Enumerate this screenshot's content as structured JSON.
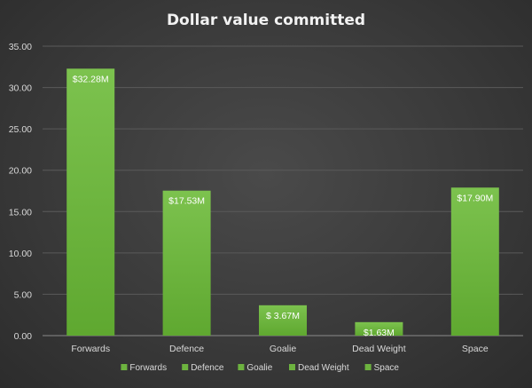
{
  "chart_data": {
    "type": "bar",
    "title": "Dollar value committed",
    "xlabel": "",
    "ylabel": "",
    "categories": [
      "Forwards",
      "Defence",
      "Goalie",
      "Dead Weight",
      "Space"
    ],
    "values": [
      32.28,
      17.53,
      3.67,
      1.63,
      17.9
    ],
    "data_labels": [
      "$32.28M",
      "$17.53M",
      "$ 3.67M",
      "$1.63M",
      "$17.90M"
    ],
    "ylim": [
      0,
      35
    ],
    "yticks": [
      "0.00",
      "5.00",
      "10.00",
      "15.00",
      "20.00",
      "25.00",
      "30.00",
      "35.00"
    ],
    "legend": [
      "Forwards",
      "Defence",
      "Goalie",
      "Dead Weight",
      "Space"
    ],
    "legend_position": "bottom",
    "grid": true,
    "bar_color": "#6db33f"
  }
}
